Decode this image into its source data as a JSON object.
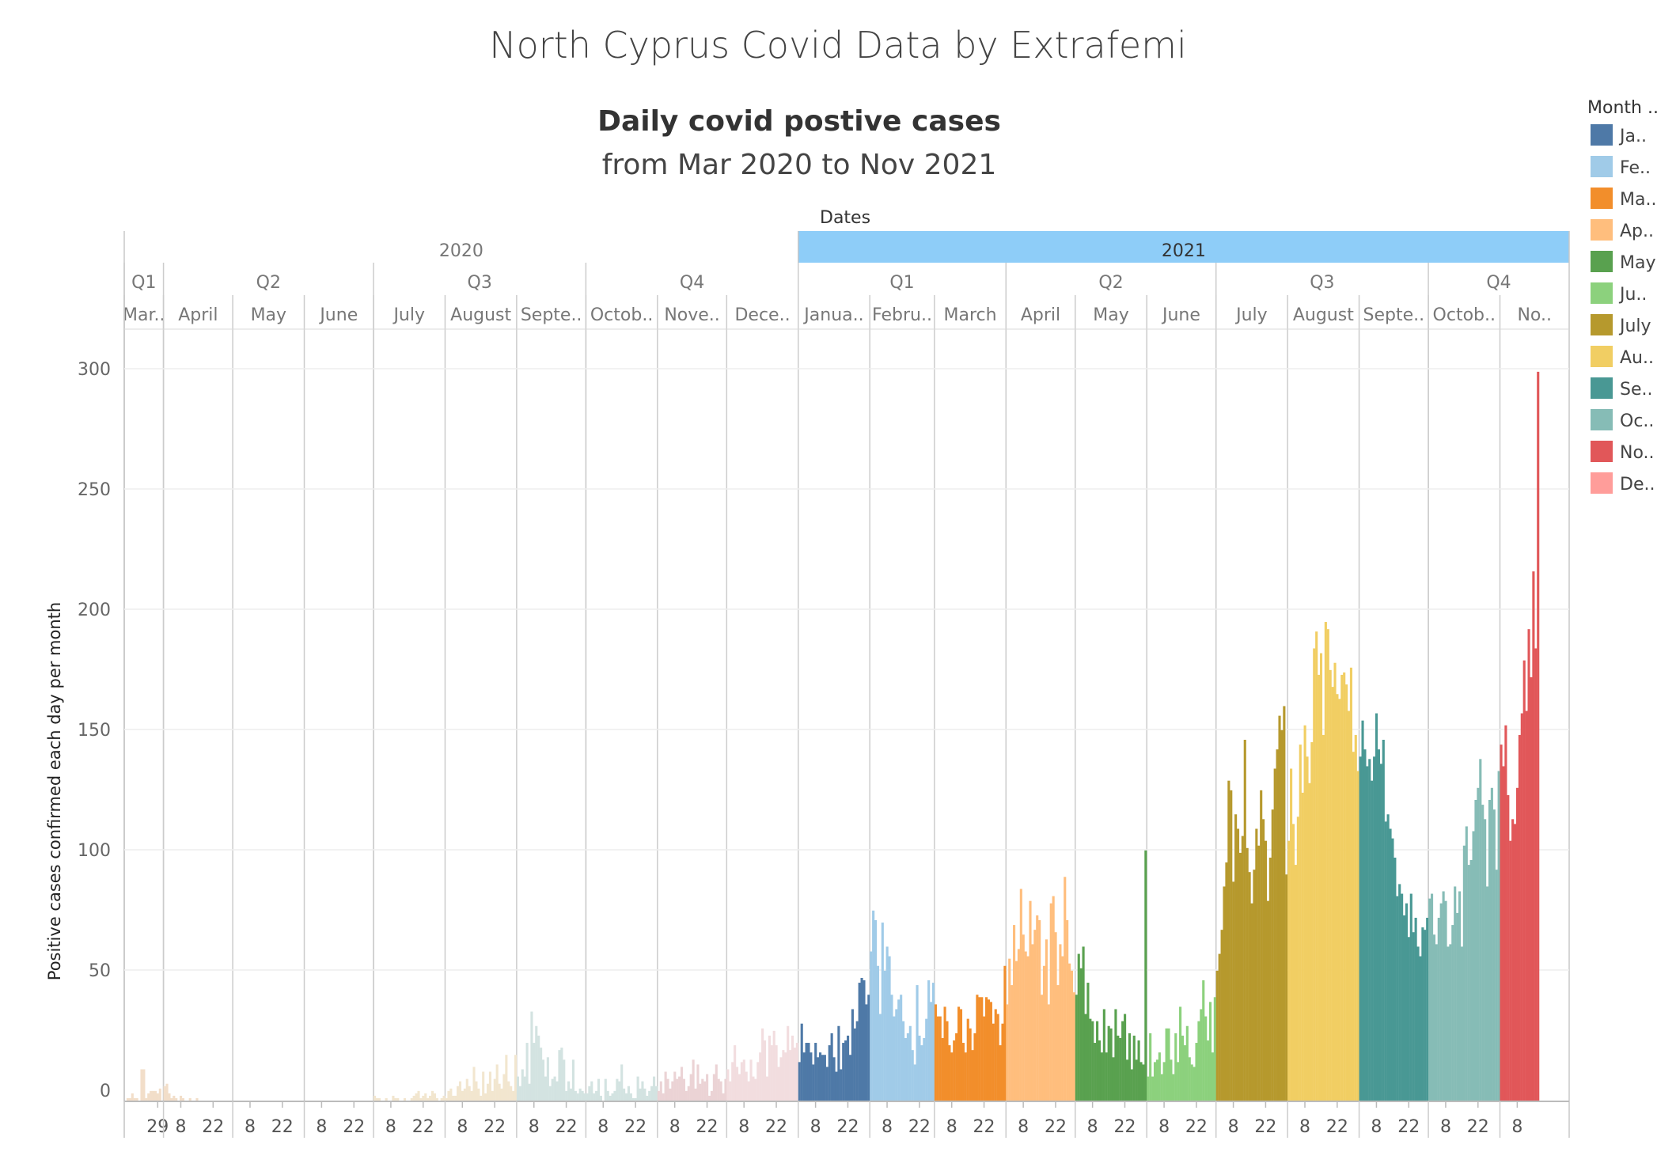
{
  "page_title": "North Cyprus Covid Data by Extrafemi",
  "chart_data": {
    "type": "bar",
    "title": "Daily covid postive cases",
    "subtitle": "from Mar 2020 to Nov 2021",
    "xlabel": "Dates",
    "ylabel": "Positive cases confirmed each day per month",
    "ylim": [
      -5,
      320
    ],
    "yticks": [
      0,
      50,
      100,
      150,
      200,
      250,
      300
    ],
    "grid": true,
    "years": [
      {
        "label": "2020",
        "start": 0,
        "end": 10,
        "highlight": false
      },
      {
        "label": "2021",
        "start": 10,
        "end": 21,
        "highlight": true
      }
    ],
    "quarters": [
      {
        "label": "Q1",
        "start": 0,
        "end": 1
      },
      {
        "label": "Q2",
        "start": 1,
        "end": 4
      },
      {
        "label": "Q3",
        "start": 4,
        "end": 7
      },
      {
        "label": "Q4",
        "start": 7,
        "end": 10
      },
      {
        "label": "Q1",
        "start": 10,
        "end": 13
      },
      {
        "label": "Q2",
        "start": 13,
        "end": 16
      },
      {
        "label": "Q3",
        "start": 16,
        "end": 19
      },
      {
        "label": "Q4",
        "start": 19,
        "end": 21
      }
    ],
    "months": [
      {
        "label": "Mar..",
        "key": "2020-03",
        "days": 31,
        "first_day": 15,
        "color": "#F2DEC9",
        "ticks": [
          "29"
        ],
        "values": [
          0,
          1,
          1,
          3,
          1,
          1,
          0,
          13,
          13,
          1,
          3,
          4,
          4,
          4,
          3,
          5
        ]
      },
      {
        "label": "April",
        "key": "2020-04",
        "days": 30,
        "first_day": 1,
        "color": "#F2DEC9",
        "ticks": [
          "8",
          "22"
        ],
        "values": [
          6,
          7,
          3,
          1,
          2,
          1,
          0,
          2,
          1,
          0,
          0,
          1,
          0,
          0,
          1,
          0,
          0,
          0,
          0,
          0,
          0,
          0,
          0,
          0,
          0,
          0,
          0,
          0,
          0,
          0
        ]
      },
      {
        "label": "May",
        "key": "2020-05",
        "days": 31,
        "first_day": 1,
        "color": "#F2DEC9",
        "ticks": [
          "8",
          "22"
        ],
        "values": [
          0,
          0,
          0,
          0,
          0,
          0,
          0,
          0,
          0,
          0,
          0,
          0,
          0,
          0,
          0,
          0,
          0,
          0,
          0,
          0,
          0,
          0,
          0,
          0,
          0,
          0,
          0,
          0,
          0,
          0,
          0
        ]
      },
      {
        "label": "June",
        "key": "2020-06",
        "days": 30,
        "first_day": 1,
        "color": "#F2DEC9",
        "ticks": [
          "8",
          "22"
        ],
        "values": [
          0,
          0,
          0,
          0,
          0,
          0,
          0,
          0,
          0,
          0,
          0,
          0,
          0,
          0,
          0,
          0,
          0,
          0,
          0,
          0,
          0,
          0,
          0,
          0,
          0,
          0,
          0,
          0,
          0,
          0
        ]
      },
      {
        "label": "July",
        "key": "2020-07",
        "days": 31,
        "first_day": 1,
        "color": "#F2E6CF",
        "ticks": [
          "8",
          "22"
        ],
        "values": [
          2,
          1,
          1,
          0,
          0,
          1,
          0,
          0,
          2,
          1,
          1,
          0,
          0,
          1,
          0,
          0,
          1,
          2,
          3,
          4,
          1,
          2,
          3,
          1,
          2,
          4,
          3,
          1,
          0,
          1,
          2
        ]
      },
      {
        "label": "August",
        "key": "2020-08",
        "days": 31,
        "first_day": 1,
        "color": "#F2E6CF",
        "ticks": [
          "8",
          "22"
        ],
        "values": [
          1,
          4,
          5,
          2,
          2,
          6,
          8,
          4,
          5,
          9,
          6,
          4,
          14,
          8,
          5,
          2,
          12,
          3,
          7,
          12,
          4,
          9,
          15,
          7,
          5,
          11,
          19,
          8,
          6,
          4,
          19
        ]
      },
      {
        "label": "Septe..",
        "key": "2020-09",
        "days": 30,
        "first_day": 1,
        "color": "#D3E3E1",
        "ticks": [
          "8",
          "22"
        ],
        "values": [
          10,
          6,
          13,
          10,
          24,
          7,
          37,
          24,
          31,
          27,
          22,
          17,
          10,
          18,
          6,
          9,
          10,
          8,
          21,
          22,
          17,
          4,
          8,
          5,
          17,
          4,
          3,
          5,
          4,
          3
        ]
      },
      {
        "label": "Octob..",
        "key": "2020-10",
        "days": 31,
        "first_day": 1,
        "color": "#D3E3E1",
        "ticks": [
          "8",
          "22"
        ],
        "values": [
          3,
          6,
          8,
          3,
          4,
          9,
          2,
          0,
          9,
          4,
          2,
          3,
          4,
          9,
          8,
          15,
          5,
          3,
          6,
          3,
          1,
          1,
          10,
          5,
          8,
          5,
          2,
          4,
          6,
          10,
          6
        ]
      },
      {
        "label": "Nove..",
        "key": "2020-11",
        "days": 30,
        "first_day": 1,
        "color": "#EBD3D5",
        "ticks": [
          "8",
          "22"
        ],
        "values": [
          4,
          8,
          3,
          12,
          9,
          5,
          8,
          12,
          9,
          10,
          14,
          9,
          4,
          6,
          11,
          17,
          5,
          15,
          7,
          9,
          8,
          11,
          2,
          4,
          11,
          15,
          9,
          8,
          3,
          9
        ]
      },
      {
        "label": "Dece..",
        "key": "2020-12",
        "days": 31,
        "first_day": 1,
        "color": "#F2DDDF",
        "ticks": [
          "8",
          "22"
        ],
        "values": [
          13,
          8,
          16,
          23,
          14,
          11,
          16,
          17,
          12,
          8,
          17,
          10,
          9,
          16,
          20,
          30,
          25,
          10,
          27,
          23,
          29,
          23,
          14,
          18,
          21,
          20,
          31,
          21,
          27,
          22,
          24
        ]
      },
      {
        "label": "Janua..",
        "key": "2021-01",
        "days": 31,
        "first_day": 1,
        "color": "#4E79A7",
        "ticks": [
          "8",
          "22"
        ],
        "values": [
          16,
          32,
          20,
          24,
          24,
          20,
          15,
          24,
          18,
          20,
          19,
          19,
          14,
          23,
          28,
          18,
          12,
          31,
          13,
          24,
          25,
          27,
          19,
          38,
          30,
          33,
          49,
          51,
          50,
          40,
          44
        ]
      },
      {
        "label": "Febru..",
        "key": "2021-02",
        "days": 28,
        "first_day": 1,
        "color": "#A0CBE8",
        "ticks": [
          "8",
          "22"
        ],
        "values": [
          62,
          79,
          75,
          56,
          36,
          74,
          54,
          64,
          60,
          44,
          35,
          38,
          42,
          44,
          33,
          26,
          28,
          31,
          21,
          15,
          48,
          27,
          23,
          26,
          34,
          50,
          41,
          49
        ]
      },
      {
        "label": "March",
        "key": "2021-03",
        "days": 31,
        "first_day": 1,
        "color": "#F28E2B",
        "ticks": [
          "8",
          "22"
        ],
        "values": [
          40,
          35,
          35,
          26,
          39,
          33,
          23,
          20,
          25,
          28,
          39,
          38,
          24,
          20,
          34,
          30,
          21,
          28,
          44,
          43,
          43,
          35,
          43,
          42,
          41,
          32,
          38,
          36,
          23,
          32,
          56
        ]
      },
      {
        "label": "April",
        "key": "2021-04",
        "days": 30,
        "first_day": 1,
        "color": "#FFBE7D",
        "ticks": [
          "8",
          "22"
        ],
        "values": [
          40,
          59,
          48,
          73,
          58,
          63,
          88,
          69,
          62,
          60,
          83,
          65,
          71,
          77,
          75,
          44,
          56,
          67,
          40,
          82,
          85,
          70,
          48,
          65,
          60,
          93,
          75,
          57,
          54,
          45
        ]
      },
      {
        "label": "May",
        "key": "2021-05",
        "days": 31,
        "first_day": 1,
        "color": "#59A14F",
        "ticks": [
          "8",
          "22"
        ],
        "values": [
          44,
          61,
          55,
          64,
          36,
          49,
          34,
          33,
          24,
          33,
          25,
          20,
          38,
          20,
          31,
          30,
          18,
          38,
          27,
          26,
          33,
          36,
          17,
          28,
          13,
          27,
          17,
          25,
          16,
          15,
          104
        ]
      },
      {
        "label": "June",
        "key": "2021-06",
        "days": 30,
        "first_day": 1,
        "color": "#8CD17D",
        "ticks": [
          "8",
          "22"
        ],
        "values": [
          10,
          28,
          10,
          16,
          17,
          20,
          11,
          16,
          30,
          30,
          17,
          11,
          28,
          16,
          39,
          27,
          23,
          31,
          18,
          15,
          14,
          24,
          33,
          38,
          50,
          35,
          25,
          41,
          20,
          43
        ]
      },
      {
        "label": "July",
        "key": "2021-07",
        "days": 31,
        "first_day": 1,
        "color": "#B6992D",
        "ticks": [
          "8",
          "22"
        ],
        "values": [
          54,
          61,
          71,
          89,
          99,
          133,
          129,
          91,
          119,
          113,
          103,
          110,
          150,
          105,
          95,
          82,
          96,
          113,
          106,
          129,
          117,
          108,
          83,
          101,
          121,
          138,
          146,
          160,
          154,
          164,
          94
        ]
      },
      {
        "label": "August",
        "key": "2021-08",
        "days": 31,
        "first_day": 1,
        "color": "#F1CE63",
        "ticks": [
          "8",
          "22"
        ],
        "values": [
          108,
          138,
          115,
          98,
          118,
          148,
          128,
          156,
          143,
          132,
          149,
          188,
          195,
          177,
          186,
          152,
          199,
          196,
          179,
          172,
          182,
          169,
          167,
          177,
          178,
          173,
          162,
          180,
          145,
          152,
          137
        ]
      },
      {
        "label": "Septe..",
        "key": "2021-09",
        "days": 30,
        "first_day": 1,
        "color": "#499894",
        "ticks": [
          "8",
          "22"
        ],
        "values": [
          143,
          158,
          146,
          139,
          142,
          133,
          143,
          161,
          146,
          140,
          150,
          116,
          119,
          113,
          109,
          101,
          85,
          90,
          86,
          77,
          82,
          68,
          86,
          70,
          76,
          64,
          60,
          72,
          71,
          76
        ]
      },
      {
        "label": "Octob..",
        "key": "2021-10",
        "days": 31,
        "first_day": 1,
        "color": "#86BCB6",
        "ticks": [
          "8",
          "22"
        ],
        "values": [
          84,
          86,
          69,
          65,
          76,
          82,
          87,
          83,
          64,
          65,
          73,
          89,
          78,
          87,
          64,
          106,
          114,
          98,
          100,
          112,
          125,
          130,
          142,
          123,
          117,
          89,
          125,
          130,
          121,
          96,
          137
        ]
      },
      {
        "label": "No..",
        "key": "2021-11",
        "days": 30,
        "first_day": 1,
        "color": "#E15759",
        "ticks": [
          "8"
        ],
        "values": [
          148,
          139,
          156,
          127,
          108,
          117,
          115,
          130,
          152,
          161,
          183,
          162,
          196,
          176,
          220,
          188,
          303
        ]
      }
    ],
    "legend": {
      "title": "Month ..",
      "placement": "right",
      "items": [
        {
          "label": "Ja..",
          "color": "#4E79A7"
        },
        {
          "label": "Fe..",
          "color": "#A0CBE8"
        },
        {
          "label": "Ma..",
          "color": "#F28E2B"
        },
        {
          "label": "Ap..",
          "color": "#FFBE7D"
        },
        {
          "label": "May",
          "color": "#59A14F"
        },
        {
          "label": "Ju..",
          "color": "#8CD17D"
        },
        {
          "label": "July",
          "color": "#B6992D"
        },
        {
          "label": "Au..",
          "color": "#F1CE63"
        },
        {
          "label": "Se..",
          "color": "#499894"
        },
        {
          "label": "Oc..",
          "color": "#86BCB6"
        },
        {
          "label": "No..",
          "color": "#E15759"
        },
        {
          "label": "De..",
          "color": "#FF9D9A"
        }
      ]
    }
  }
}
